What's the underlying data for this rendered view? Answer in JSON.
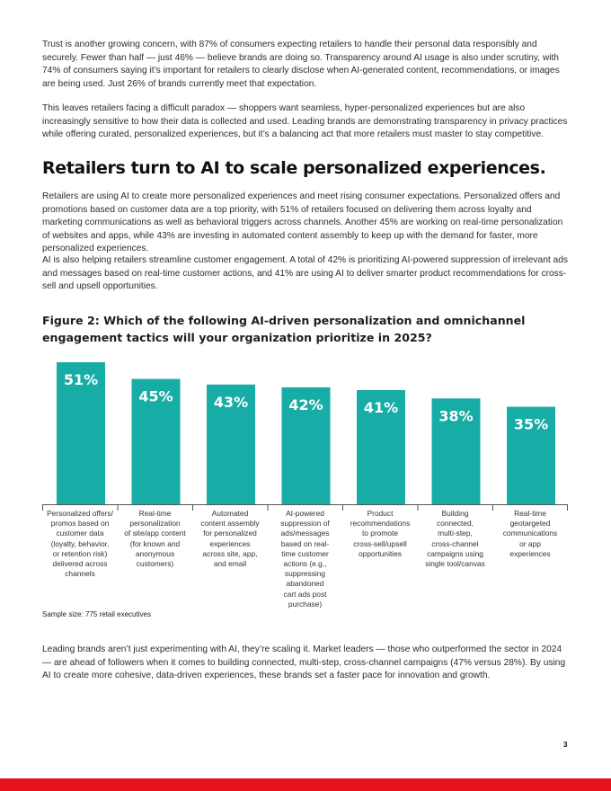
{
  "body": {
    "p1": "Trust is another growing concern, with 87% of consumers expecting retailers to handle their personal data responsibly and securely. Fewer than half — just 46% — believe brands are doing so. Transparency around AI usage is also under scrutiny, with 74% of consumers saying it’s important for retailers to clearly disclose when AI-generated content, recommendations, or images are being used. Just 26% of brands currently meet that expectation.",
    "p2": "This leaves retailers facing a difficult paradox — shoppers want seamless, hyper-personalized experiences but are also increasingly sensitive to how their data is collected and used. Leading brands are demonstrating transparency in privacy practices while offering curated, personalized experiences, but it’s a balancing act that more retailers must master to stay competitive.",
    "heading": "Retailers turn to AI to scale personalized experiences.",
    "p3": "Retailers are using AI to create more personalized experiences and meet rising consumer expectations. Personalized offers and promotions based on customer data are a top priority, with 51% of retailers focused on delivering them across loyalty and marketing communications as well as behavioral triggers across channels. Another 45% are working on real-time personalization of websites and apps, while 43% are investing in automated content assembly to keep up with the demand for faster, more personalized experiences.",
    "p4": "AI is also helping retailers streamline customer engagement. A total of 42% is prioritizing AI-powered suppression of irrelevant ads and messages based on real-time customer actions, and 41% are using AI to deliver smarter product recommendations for cross-sell and upsell opportunities.",
    "p5": "Leading brands aren’t just experimenting with AI, they’re scaling it. Market leaders — those who outperformed the sector in 2024 — are ahead of followers when it comes to building connected, multi-step, cross-channel campaigns (47% versus 28%). By using AI to create more cohesive, data-driven experiences, these brands set a faster pace for innovation and growth.",
    "sample_size": "Sample size: 775 retail executives",
    "page_number": "3"
  },
  "colors": {
    "bar": "#17aca5",
    "footer": "#e8121c"
  },
  "chart_data": {
    "type": "bar",
    "title": "Figure 2: Which of the following AI-driven personalization and omnichannel engagement tactics will your organization prioritize in 2025?",
    "categories": [
      "Personalized offers/\npromos based on\ncustomer data\n(loyalty, behavior,\nor retention risk)\ndelivered across\nchannels",
      "Real-time\npersonalization\nof site/app content\n(for known and\nanonymous\ncustomers)",
      "Automated\ncontent assembly\nfor personalized\nexperiences\nacross site, app,\nand email",
      "AI-powered\nsuppression of\nads/messages\nbased on real-\ntime customer\nactions (e.g.,\nsuppressing\nabandoned\ncart ads post\npurchase)",
      "Product\nrecommendations\nto promote\ncross-sell/upsell\nopportunities",
      "Building\nconnected,\nmulti-step,\ncross-channel\ncampaigns using\nsingle tool/canvas",
      "Real-time\ngeotargeted\ncommunications\nor app\nexperiences"
    ],
    "values": [
      51,
      45,
      43,
      42,
      41,
      38,
      35
    ],
    "value_labels": [
      "51%",
      "45%",
      "43%",
      "42%",
      "41%",
      "38%",
      "35%"
    ],
    "unit": "%",
    "xlabel": "",
    "ylabel": "",
    "grid": false,
    "legend": "none",
    "data_labels": "inside-top"
  }
}
